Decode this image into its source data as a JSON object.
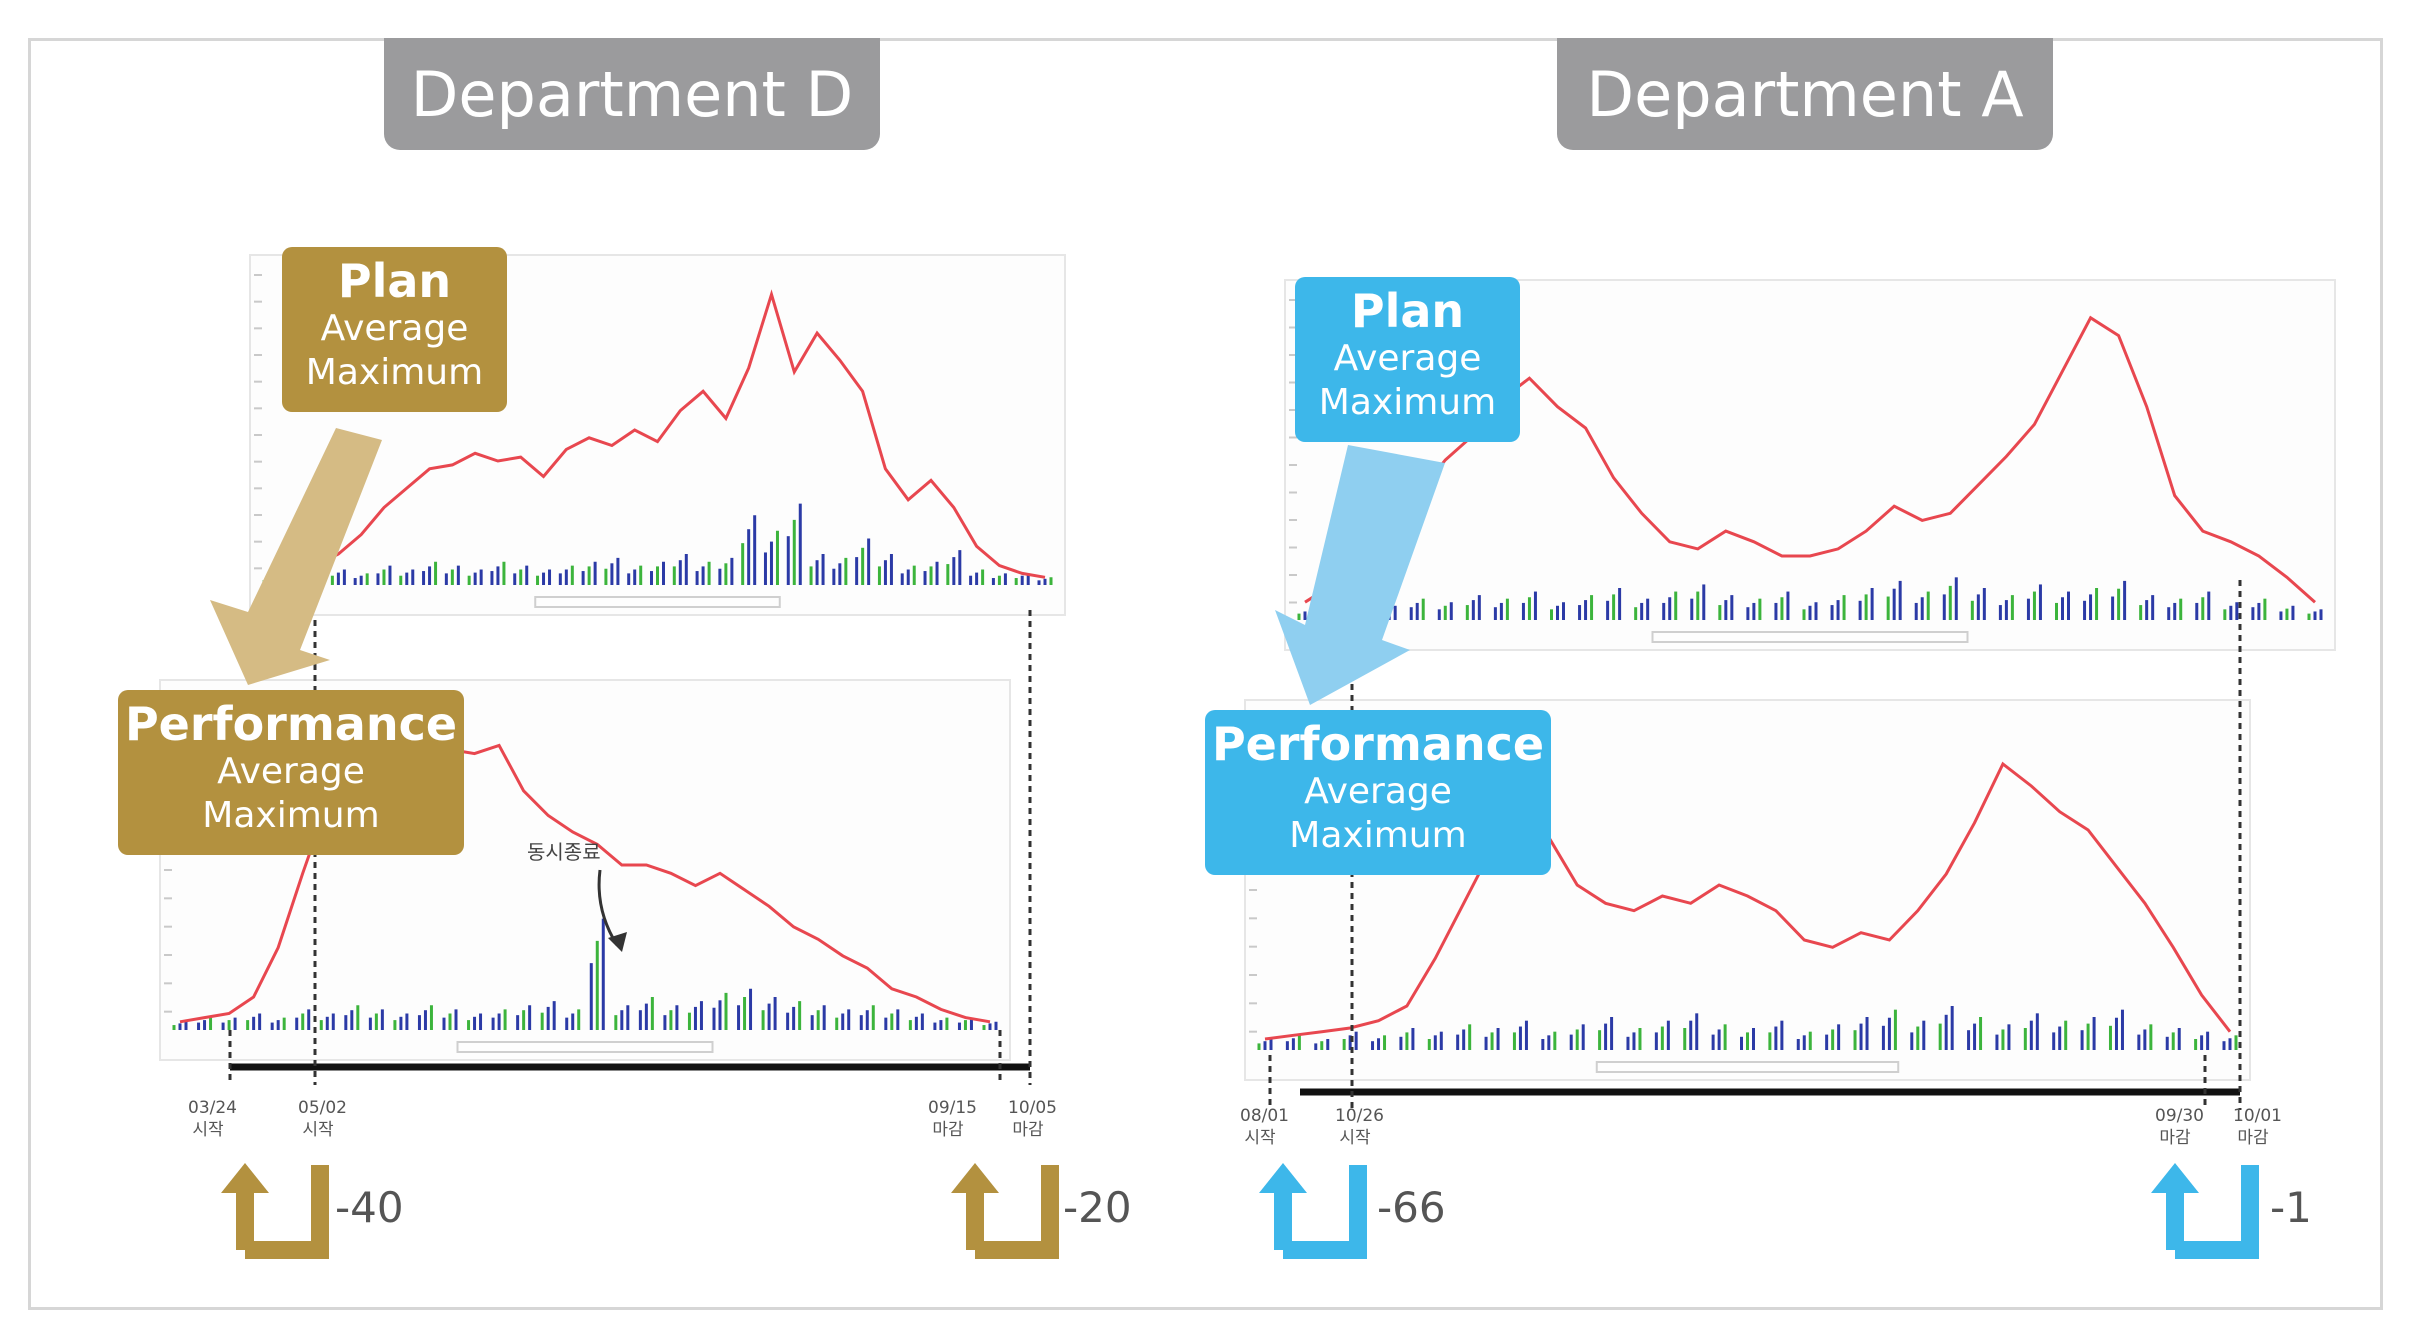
{
  "departments": [
    {
      "title": "Department D",
      "color": "#b3913f",
      "plan_label": {
        "main": "Plan",
        "line1": "Average",
        "line2": "Maximum"
      },
      "performance_label": {
        "main": "Performance",
        "line1": "Average",
        "line2": "Maximum"
      },
      "annotation": "동시종료",
      "dates": [
        {
          "date": "03/24",
          "word": "시작"
        },
        {
          "date": "05/02",
          "word": "시작"
        },
        {
          "date": "09/15",
          "word": "마감"
        },
        {
          "date": "10/05",
          "word": "마감"
        }
      ],
      "offsets": [
        "-40",
        "-20"
      ]
    },
    {
      "title": "Department A",
      "color": "#3db7ea",
      "plan_label": {
        "main": "Plan",
        "line1": "Average",
        "line2": "Maximum"
      },
      "performance_label": {
        "main": "Performance",
        "line1": "Average",
        "line2": "Maximum"
      },
      "dates": [
        {
          "date": "08/01",
          "word": "시작"
        },
        {
          "date": "10/26",
          "word": "시작"
        },
        {
          "date": "09/30",
          "word": "마감"
        },
        {
          "date": "10/01",
          "word": "마감"
        }
      ],
      "offsets": [
        "-66",
        "-1"
      ]
    }
  ],
  "colors": {
    "average_line": "#e8474f",
    "maximum_bars_blue": "#2b3aa6",
    "maximum_bars_green": "#3cb43c",
    "frame": "#d6d6d6",
    "title_bg": "#9b9b9d"
  },
  "icons": [
    "turn-up-arrow-icon",
    "down-left-arrow-icon"
  ],
  "chart_data": [
    {
      "type": "line",
      "panel": "Department D - Plan",
      "series": [
        {
          "values": [
            3,
            4,
            5,
            8,
            13,
            20,
            25,
            30,
            31,
            34,
            32,
            33,
            28,
            35,
            38,
            36,
            40,
            37,
            45,
            50,
            43,
            56,
            75,
            55,
            65,
            58,
            50,
            30,
            22,
            27,
            20,
            10,
            5,
            3,
            2
          ]
        },
        {
          "values": [
            2,
            3,
            4,
            4,
            3,
            5,
            4,
            6,
            5,
            4,
            6,
            5,
            4,
            5,
            6,
            7,
            5,
            6,
            8,
            6,
            7,
            18,
            14,
            21,
            8,
            7,
            12,
            8,
            5,
            6,
            9,
            4,
            3,
            3,
            2
          ]
        }
      ]
    },
    {
      "type": "line",
      "panel": "Department D - Performance",
      "series": [
        {
          "values": [
            2,
            3,
            4,
            8,
            20,
            38,
            55,
            65,
            73,
            72,
            70,
            68,
            67,
            69,
            58,
            52,
            48,
            45,
            40,
            40,
            38,
            35,
            38,
            34,
            30,
            25,
            22,
            18,
            15,
            10,
            8,
            5,
            3,
            2
          ]
        },
        {
          "values": [
            2,
            3,
            3,
            4,
            3,
            5,
            4,
            6,
            5,
            4,
            6,
            5,
            4,
            5,
            6,
            7,
            5,
            27,
            6,
            8,
            6,
            7,
            9,
            10,
            8,
            7,
            6,
            5,
            6,
            5,
            4,
            3,
            3,
            2
          ]
        }
      ]
    },
    {
      "type": "line",
      "panel": "Department A - Plan",
      "series": [
        {
          "values": [
            5,
            10,
            18,
            28,
            35,
            45,
            52,
            62,
            68,
            60,
            54,
            40,
            30,
            22,
            20,
            25,
            22,
            18,
            18,
            20,
            25,
            32,
            28,
            30,
            38,
            46,
            55,
            70,
            85,
            80,
            60,
            35,
            25,
            22,
            18,
            12,
            5
          ]
        },
        {
          "values": [
            3,
            4,
            5,
            4,
            6,
            5,
            7,
            6,
            8,
            5,
            7,
            9,
            6,
            8,
            10,
            7,
            6,
            8,
            5,
            7,
            9,
            11,
            8,
            12,
            9,
            7,
            10,
            8,
            9,
            11,
            7,
            6,
            8,
            5,
            6,
            4,
            3
          ]
        }
      ]
    },
    {
      "type": "line",
      "panel": "Department A - Performance",
      "series": [
        {
          "values": [
            3,
            4,
            5,
            6,
            8,
            12,
            25,
            40,
            55,
            70,
            58,
            45,
            40,
            38,
            42,
            40,
            45,
            42,
            38,
            30,
            28,
            32,
            30,
            38,
            48,
            62,
            78,
            72,
            65,
            60,
            50,
            40,
            28,
            15,
            5
          ]
        },
        {
          "values": [
            3,
            4,
            3,
            5,
            4,
            6,
            5,
            7,
            6,
            8,
            5,
            7,
            9,
            6,
            8,
            10,
            7,
            6,
            8,
            5,
            7,
            9,
            11,
            8,
            12,
            9,
            7,
            10,
            8,
            9,
            11,
            7,
            6,
            5,
            4
          ]
        }
      ]
    }
  ]
}
